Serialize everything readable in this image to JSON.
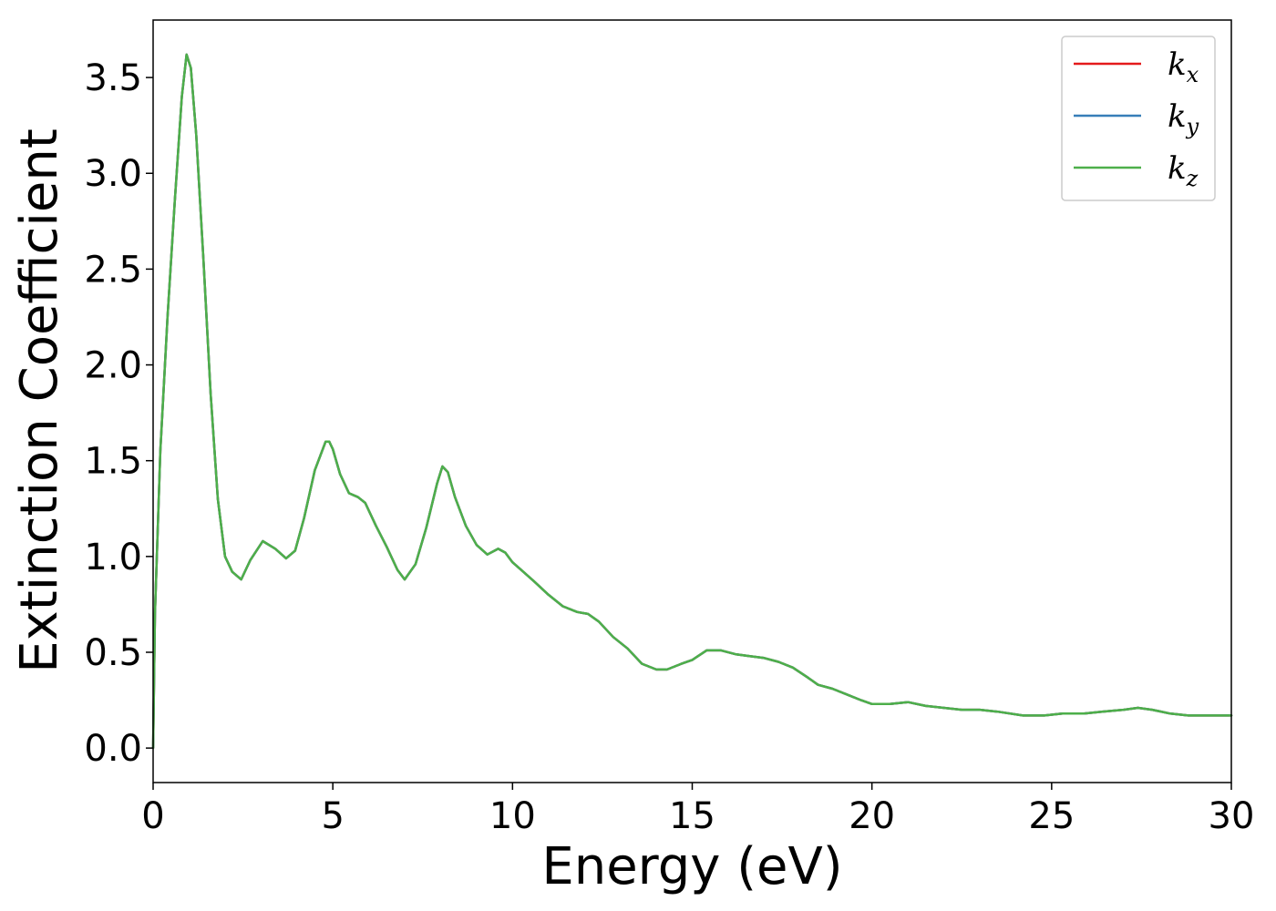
{
  "chart_data": {
    "type": "line",
    "title": "",
    "xlabel": "Energy (eV)",
    "ylabel": "Extinction Coefficient",
    "xlim": [
      0,
      30
    ],
    "ylim": [
      -0.18,
      3.8
    ],
    "xticks": [
      0,
      5,
      10,
      15,
      20,
      25,
      30
    ],
    "xtick_labels": [
      "0",
      "5",
      "10",
      "15",
      "20",
      "25",
      "30"
    ],
    "yticks": [
      0.0,
      0.5,
      1.0,
      1.5,
      2.0,
      2.5,
      3.0,
      3.5
    ],
    "ytick_labels": [
      "0.0",
      "0.5",
      "1.0",
      "1.5",
      "2.0",
      "2.5",
      "3.0",
      "3.5"
    ],
    "grid": false,
    "legend_position": "top-right",
    "x": [
      0,
      0.05,
      0.2,
      0.4,
      0.6,
      0.8,
      0.93,
      1.05,
      1.2,
      1.4,
      1.6,
      1.8,
      2.0,
      2.2,
      2.45,
      2.7,
      3.05,
      3.4,
      3.7,
      3.95,
      4.2,
      4.5,
      4.8,
      4.9,
      5.0,
      5.2,
      5.45,
      5.7,
      5.9,
      6.2,
      6.5,
      6.8,
      7.0,
      7.3,
      7.6,
      7.9,
      8.05,
      8.2,
      8.4,
      8.7,
      9.0,
      9.3,
      9.6,
      9.8,
      10.0,
      10.3,
      10.6,
      11.0,
      11.4,
      11.8,
      12.1,
      12.4,
      12.8,
      13.2,
      13.6,
      14.0,
      14.3,
      14.7,
      15.0,
      15.4,
      15.8,
      16.2,
      16.6,
      17.0,
      17.4,
      17.8,
      18.2,
      18.5,
      18.9,
      19.3,
      19.7,
      20.0,
      20.5,
      21.0,
      21.5,
      22.0,
      22.5,
      23.0,
      23.5,
      24.2,
      24.8,
      25.3,
      25.9,
      26.4,
      27.0,
      27.4,
      27.8,
      28.3,
      28.8,
      29.3,
      30.0
    ],
    "series": [
      {
        "name": "k_x",
        "color": "#e41a1c",
        "values": [
          0.0,
          0.7,
          1.55,
          2.25,
          2.85,
          3.4,
          3.62,
          3.55,
          3.2,
          2.55,
          1.85,
          1.3,
          1.0,
          0.92,
          0.88,
          0.98,
          1.08,
          1.04,
          0.99,
          1.03,
          1.2,
          1.45,
          1.6,
          1.6,
          1.56,
          1.43,
          1.33,
          1.31,
          1.28,
          1.16,
          1.05,
          0.93,
          0.88,
          0.96,
          1.15,
          1.38,
          1.47,
          1.44,
          1.31,
          1.16,
          1.06,
          1.01,
          1.04,
          1.02,
          0.97,
          0.92,
          0.87,
          0.8,
          0.74,
          0.71,
          0.7,
          0.66,
          0.58,
          0.52,
          0.44,
          0.41,
          0.41,
          0.44,
          0.46,
          0.51,
          0.51,
          0.49,
          0.48,
          0.47,
          0.45,
          0.42,
          0.37,
          0.33,
          0.31,
          0.28,
          0.25,
          0.23,
          0.23,
          0.24,
          0.22,
          0.21,
          0.2,
          0.2,
          0.19,
          0.17,
          0.17,
          0.18,
          0.18,
          0.19,
          0.2,
          0.21,
          0.2,
          0.18,
          0.17,
          0.17,
          0.17
        ]
      },
      {
        "name": "k_y",
        "color": "#377eb8",
        "values": [
          0.0,
          0.7,
          1.55,
          2.25,
          2.85,
          3.4,
          3.62,
          3.55,
          3.2,
          2.55,
          1.85,
          1.3,
          1.0,
          0.92,
          0.88,
          0.98,
          1.08,
          1.04,
          0.99,
          1.03,
          1.2,
          1.45,
          1.6,
          1.6,
          1.56,
          1.43,
          1.33,
          1.31,
          1.28,
          1.16,
          1.05,
          0.93,
          0.88,
          0.96,
          1.15,
          1.38,
          1.47,
          1.44,
          1.31,
          1.16,
          1.06,
          1.01,
          1.04,
          1.02,
          0.97,
          0.92,
          0.87,
          0.8,
          0.74,
          0.71,
          0.7,
          0.66,
          0.58,
          0.52,
          0.44,
          0.41,
          0.41,
          0.44,
          0.46,
          0.51,
          0.51,
          0.49,
          0.48,
          0.47,
          0.45,
          0.42,
          0.37,
          0.33,
          0.31,
          0.28,
          0.25,
          0.23,
          0.23,
          0.24,
          0.22,
          0.21,
          0.2,
          0.2,
          0.19,
          0.17,
          0.17,
          0.18,
          0.18,
          0.19,
          0.2,
          0.21,
          0.2,
          0.18,
          0.17,
          0.17,
          0.17
        ]
      },
      {
        "name": "k_z",
        "color": "#4daf4a",
        "values": [
          0.0,
          0.7,
          1.55,
          2.25,
          2.85,
          3.4,
          3.62,
          3.55,
          3.2,
          2.55,
          1.85,
          1.3,
          1.0,
          0.92,
          0.88,
          0.98,
          1.08,
          1.04,
          0.99,
          1.03,
          1.2,
          1.45,
          1.6,
          1.6,
          1.56,
          1.43,
          1.33,
          1.31,
          1.28,
          1.16,
          1.05,
          0.93,
          0.88,
          0.96,
          1.15,
          1.38,
          1.47,
          1.44,
          1.31,
          1.16,
          1.06,
          1.01,
          1.04,
          1.02,
          0.97,
          0.92,
          0.87,
          0.8,
          0.74,
          0.71,
          0.7,
          0.66,
          0.58,
          0.52,
          0.44,
          0.41,
          0.41,
          0.44,
          0.46,
          0.51,
          0.51,
          0.49,
          0.48,
          0.47,
          0.45,
          0.42,
          0.37,
          0.33,
          0.31,
          0.28,
          0.25,
          0.23,
          0.23,
          0.24,
          0.22,
          0.21,
          0.2,
          0.2,
          0.19,
          0.17,
          0.17,
          0.18,
          0.18,
          0.19,
          0.2,
          0.21,
          0.2,
          0.18,
          0.17,
          0.17,
          0.17
        ]
      }
    ],
    "legend": [
      {
        "base": "k",
        "sub": "x",
        "color": "#e41a1c"
      },
      {
        "base": "k",
        "sub": "y",
        "color": "#377eb8"
      },
      {
        "base": "k",
        "sub": "z",
        "color": "#4daf4a"
      }
    ]
  }
}
